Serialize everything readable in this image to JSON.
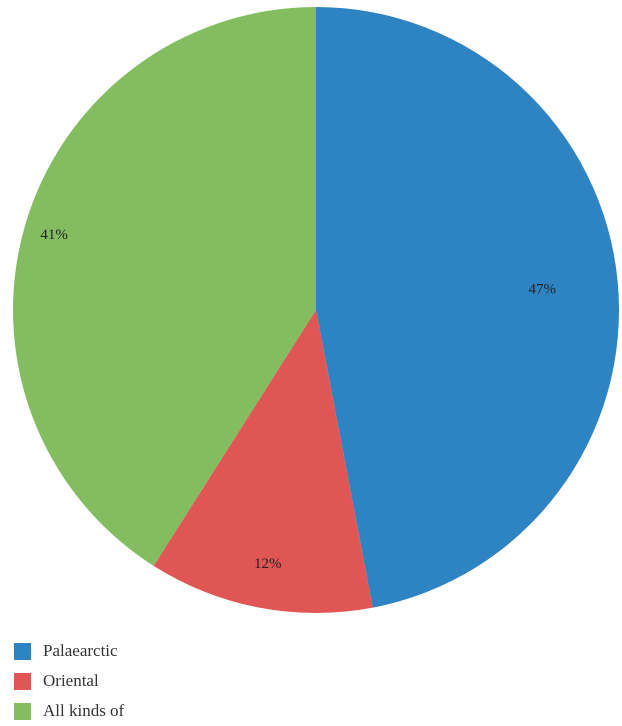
{
  "chart_data": {
    "type": "pie",
    "slices": [
      {
        "label": "Palaearctic",
        "value": 47,
        "display": "47%",
        "color": "#2e83c2"
      },
      {
        "label": "Oriental",
        "value": 12,
        "display": "12%",
        "color": "#df5655"
      },
      {
        "label": "All kinds of",
        "value": 41,
        "display": "41%",
        "color": "#84bd5f"
      }
    ],
    "start": "12 o'clock",
    "direction": "clockwise",
    "legend_position": "bottom-left"
  }
}
